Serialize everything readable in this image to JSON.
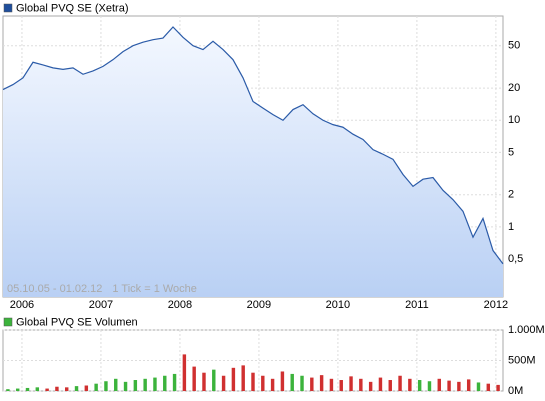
{
  "chart_data": [
    {
      "type": "line",
      "title": "Global PVQ SE (Xetra)",
      "period": "05.10.05 - 01.02.12",
      "tick_note": "1 Tick = 1 Woche",
      "log_scale": true,
      "grid": true,
      "color": "#2b5ba8",
      "legend_color": "#1f4e9c",
      "xlim": [
        2005.76,
        2012.09
      ],
      "xticks": [
        2006,
        2007,
        2008,
        2009,
        2010,
        2011,
        2012
      ],
      "ylim": [
        0.22,
        95
      ],
      "yticks": [
        50,
        20,
        10,
        5,
        2,
        1,
        {
          "value": 0.5,
          "label": "0,5"
        }
      ],
      "series": [
        {
          "name": "Global PVQ SE (Xetra)",
          "values": [
            19.4,
            21.6,
            25,
            35,
            33,
            31,
            30,
            31,
            27,
            29,
            32,
            37,
            44,
            50,
            54,
            57,
            59,
            75,
            60,
            50,
            46,
            55,
            46,
            37,
            25,
            15,
            13,
            11.3,
            10,
            12.6,
            14,
            11.5,
            10,
            9.1,
            8.6,
            7.4,
            6.6,
            5.3,
            4.8,
            4.3,
            3.1,
            2.4,
            2.8,
            2.9,
            2.2,
            1.8,
            1.4,
            0.8,
            1.2,
            0.6,
            0.45
          ]
        }
      ]
    },
    {
      "type": "bar",
      "title": "Global PVQ SE Volumen",
      "up_color": "#3cb33c",
      "down_color": "#d03030",
      "legend_color": "#3cb33c",
      "grid": true,
      "ylim": [
        0,
        1000
      ],
      "yticks": [
        {
          "value": 1000,
          "label": "1.000M"
        },
        {
          "value": 500,
          "label": "500M"
        },
        {
          "value": 0,
          "label": "0M"
        }
      ],
      "series": [
        {
          "name": "Global PVQ SE Volumen",
          "values": [
            30,
            40,
            50,
            60,
            40,
            70,
            60,
            80,
            90,
            120,
            160,
            200,
            150,
            180,
            200,
            220,
            250,
            280,
            600,
            400,
            300,
            350,
            250,
            380,
            420,
            300,
            250,
            200,
            320,
            280,
            250,
            220,
            260,
            200,
            180,
            240,
            200,
            150,
            220,
            180,
            250,
            200,
            180,
            160,
            200,
            170,
            150,
            190,
            140,
            120,
            100
          ]
        }
      ]
    }
  ]
}
